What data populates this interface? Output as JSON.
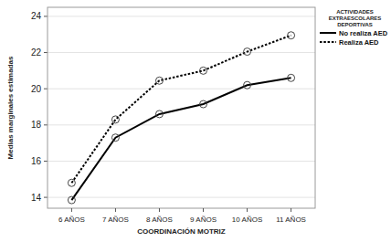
{
  "chart_data": {
    "type": "line",
    "x_label": "COORDINACIÓN MOTRIZ",
    "y_label": "Medias marginales estimadas",
    "legend_title": "ACTIVIDADES EXTRAESCOLARES DEPORTIVAS",
    "categories": [
      "6 AÑOS",
      "7 AÑOS",
      "8 AÑOS",
      "9 AÑOS",
      "10 AÑOS",
      "11 AÑOS"
    ],
    "series": [
      {
        "name": "No realiza AED",
        "color": "#000000",
        "line_style": "solid",
        "marker": "circle",
        "values": [
          13.85,
          17.3,
          18.6,
          19.15,
          20.2,
          20.6
        ]
      },
      {
        "name": "Realiza AED",
        "color": "#000000",
        "line_style": "dotted",
        "marker": "circle",
        "values": [
          14.8,
          18.3,
          20.45,
          21.0,
          22.05,
          22.95
        ]
      }
    ],
    "ylim": [
      13.4,
      24.5
    ],
    "yticks": [
      14,
      16,
      18,
      20,
      22,
      24
    ],
    "grid": true,
    "legend": "top-right"
  }
}
